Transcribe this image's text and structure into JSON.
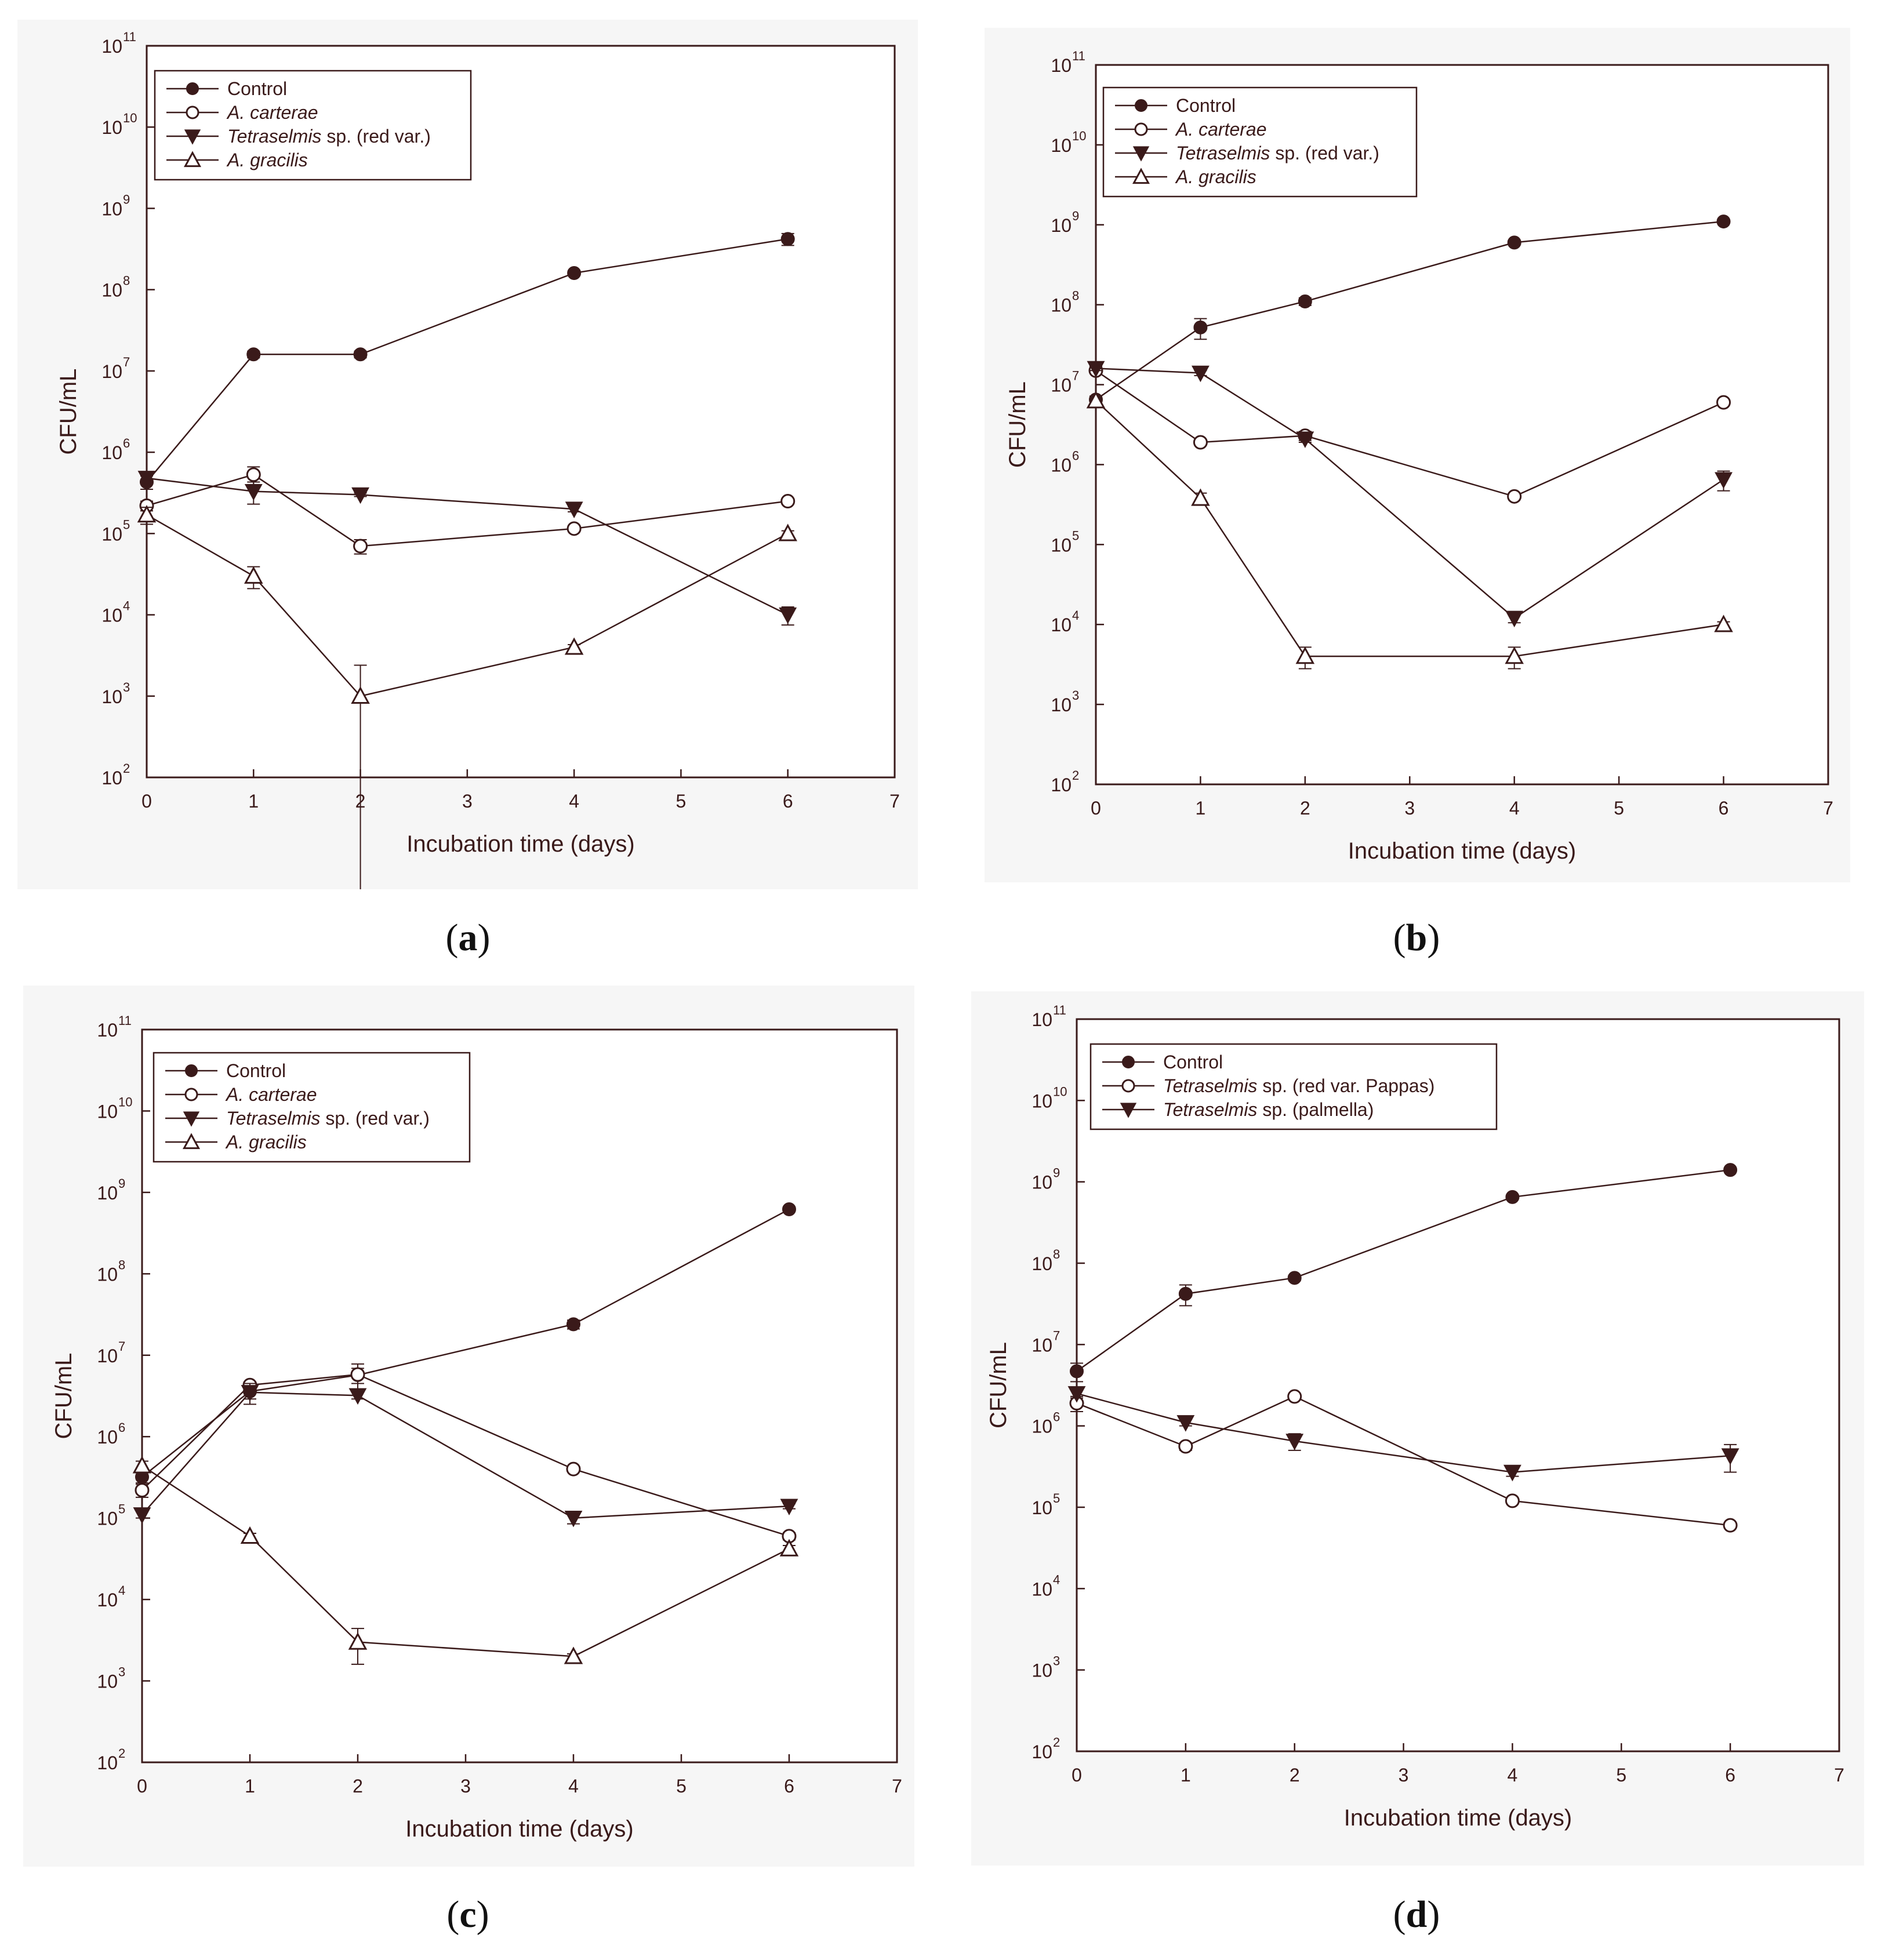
{
  "figure": {
    "captions": [
      {
        "open": "(",
        "letter": "a",
        "close": ")"
      },
      {
        "open": "(",
        "letter": "b",
        "close": ")"
      },
      {
        "open": "(",
        "letter": "c",
        "close": ")"
      },
      {
        "open": "(",
        "letter": "d",
        "close": ")"
      }
    ]
  },
  "colors": {
    "ink": "#3a1a1a",
    "panel_bg": "#f6f6f6",
    "plot_bg": "#ffffff"
  },
  "chart_data": [
    {
      "type": "line",
      "panel": "a",
      "xlabel": "Incubation time (days)",
      "ylabel": "CFU/mL",
      "yscale": "log",
      "xlim": [
        0,
        7
      ],
      "ylim": [
        100,
        100000000000
      ],
      "xticks": [
        "0",
        "1",
        "2",
        "3",
        "4",
        "5",
        "6",
        "7"
      ],
      "yticks": [
        "2",
        "3",
        "4",
        "5",
        "6",
        "7",
        "8",
        "9",
        "10",
        "11"
      ],
      "legend_position": "top-left",
      "series": [
        {
          "name": "Control",
          "italic": "",
          "suffix": "",
          "marker": "filled-circle",
          "x": [
            0,
            1,
            2,
            4,
            6
          ],
          "y": [
            430000,
            16000000,
            16000000,
            160000000,
            420000000
          ],
          "err": [
            80000,
            1500000,
            1500000,
            8000000,
            70000000
          ]
        },
        {
          "name": "A. carterae",
          "italic": "A. carterae",
          "suffix": "",
          "marker": "open-circle",
          "x": [
            0,
            1,
            2,
            4,
            6
          ],
          "y": [
            220000,
            530000,
            70000,
            115000,
            250000
          ],
          "err": [
            30000,
            130000,
            14000,
            8000,
            15000
          ]
        },
        {
          "name": "Tetraselmis sp. (red var.)",
          "italic": "Tetraselmis",
          "suffix": " sp. (red var.)",
          "marker": "filled-triangle-down",
          "x": [
            0,
            1,
            2,
            4,
            6
          ],
          "y": [
            480000,
            330000,
            300000,
            200000,
            10000
          ],
          "err": [
            40000,
            100000,
            15000,
            15000,
            2500
          ]
        },
        {
          "name": "A. gracilis",
          "italic": "A. gracilis",
          "suffix": "",
          "marker": "open-triangle-up",
          "x": [
            0,
            1,
            2,
            4,
            6
          ],
          "y": [
            170000,
            30000,
            1000,
            4000,
            100000
          ],
          "err": [
            40000,
            9000,
            1400,
            300,
            8000
          ]
        }
      ]
    },
    {
      "type": "line",
      "panel": "b",
      "xlabel": "Incubation time (days)",
      "ylabel": "CFU/mL",
      "yscale": "log",
      "xlim": [
        0,
        7
      ],
      "ylim": [
        100,
        100000000000
      ],
      "xticks": [
        "0",
        "1",
        "2",
        "3",
        "4",
        "5",
        "6",
        "7"
      ],
      "yticks": [
        "2",
        "3",
        "4",
        "5",
        "6",
        "7",
        "8",
        "9",
        "10",
        "11"
      ],
      "legend_position": "top-left",
      "series": [
        {
          "name": "Control",
          "italic": "",
          "suffix": "",
          "marker": "filled-circle",
          "x": [
            0,
            1,
            2,
            4,
            6
          ],
          "y": [
            6500000,
            52000000,
            110000000,
            600000000,
            1100000000
          ],
          "err": [
            700000,
            15000000,
            12000000,
            30000000,
            60000000
          ]
        },
        {
          "name": "A. carterae",
          "italic": "A. carterae",
          "suffix": "",
          "marker": "open-circle",
          "x": [
            0,
            1,
            2,
            4,
            6
          ],
          "y": [
            15000000,
            1900000,
            2300000,
            400000,
            6000000
          ],
          "err": [
            1000000,
            150000,
            300000,
            30000,
            400000
          ]
        },
        {
          "name": "Tetraselmis sp. (red var.)",
          "italic": "Tetraselmis",
          "suffix": " sp. (red var.)",
          "marker": "filled-triangle-down",
          "x": [
            0,
            1,
            2,
            4,
            6
          ],
          "y": [
            16000000,
            14000000,
            2100000,
            12000,
            650000
          ],
          "err": [
            1000000,
            1000000,
            200000,
            1500,
            180000
          ]
        },
        {
          "name": "A. gracilis",
          "italic": "A. gracilis",
          "suffix": "",
          "marker": "open-triangle-up",
          "x": [
            0,
            1,
            2,
            4,
            6
          ],
          "y": [
            6300000,
            380000,
            4000,
            4000,
            10000
          ],
          "err": [
            600000,
            60000,
            1200,
            1200,
            800
          ]
        }
      ]
    },
    {
      "type": "line",
      "panel": "c",
      "xlabel": "Incubation time (days)",
      "ylabel": "CFU/mL",
      "yscale": "log",
      "xlim": [
        0,
        7
      ],
      "ylim": [
        100,
        100000000000
      ],
      "xticks": [
        "0",
        "1",
        "2",
        "3",
        "4",
        "5",
        "6",
        "7"
      ],
      "yticks": [
        "2",
        "3",
        "4",
        "5",
        "6",
        "7",
        "8",
        "9",
        "10",
        "11"
      ],
      "legend_position": "top-left",
      "series": [
        {
          "name": "Control",
          "italic": "",
          "suffix": "",
          "marker": "filled-circle",
          "x": [
            0,
            1,
            2,
            4,
            6
          ],
          "y": [
            320000,
            3600000,
            5700000,
            24000000,
            620000000
          ],
          "err": [
            50000,
            700000,
            1200000,
            3000000,
            40000000
          ]
        },
        {
          "name": "A. carterae",
          "italic": "A. carterae",
          "suffix": "",
          "marker": "open-circle",
          "x": [
            0,
            1,
            2,
            4,
            6
          ],
          "y": [
            220000,
            4300000,
            5800000,
            400000,
            60000
          ],
          "err": [
            40000,
            400000,
            2000000,
            25000,
            6000
          ]
        },
        {
          "name": "Tetraselmis sp. (red var.)",
          "italic": "Tetraselmis",
          "suffix": " sp. (red var.)",
          "marker": "filled-triangle-down",
          "x": [
            0,
            1,
            2,
            4,
            6
          ],
          "y": [
            110000,
            3500000,
            3200000,
            100000,
            140000
          ],
          "err": [
            10000,
            1000000,
            300000,
            15000,
            10000
          ]
        },
        {
          "name": "A. gracilis",
          "italic": "A. gracilis",
          "suffix": "",
          "marker": "open-triangle-up",
          "x": [
            0,
            1,
            2,
            4,
            6
          ],
          "y": [
            440000,
            60000,
            3000,
            2000,
            42000
          ],
          "err": [
            60000,
            5000,
            1400,
            150,
            4000
          ]
        }
      ]
    },
    {
      "type": "line",
      "panel": "d",
      "xlabel": "Incubation time (days)",
      "ylabel": "CFU/mL",
      "yscale": "log",
      "xlim": [
        0,
        7
      ],
      "ylim": [
        100,
        100000000000
      ],
      "xticks": [
        "0",
        "1",
        "2",
        "3",
        "4",
        "5",
        "6",
        "7"
      ],
      "yticks": [
        "2",
        "3",
        "4",
        "5",
        "6",
        "7",
        "8",
        "9",
        "10",
        "11"
      ],
      "legend_position": "top-left",
      "series": [
        {
          "name": "Control",
          "italic": "",
          "suffix": "",
          "marker": "filled-circle",
          "x": [
            0,
            1,
            2,
            4,
            6
          ],
          "y": [
            4700000,
            42000000,
            66000000,
            650000000,
            1400000000
          ],
          "err": [
            1200000,
            12000000,
            5000000,
            30000000,
            80000000
          ]
        },
        {
          "name": "Tetraselmis sp. (red var. Pappas)",
          "italic": "Tetraselmis",
          "suffix": " sp. (red var. Pappas)",
          "marker": "open-circle",
          "x": [
            0,
            1,
            2,
            4,
            6
          ],
          "y": [
            1900000,
            560000,
            2300000,
            120000,
            60000
          ],
          "err": [
            400000,
            60000,
            150000,
            10000,
            4000
          ]
        },
        {
          "name": "Tetraselmis sp. (palmella)",
          "italic": "Tetraselmis",
          "suffix": " sp. (palmella)",
          "marker": "filled-triangle-down",
          "x": [
            0,
            1,
            2,
            4,
            6
          ],
          "y": [
            2500000,
            1100000,
            650000,
            270000,
            430000
          ],
          "err": [
            300000,
            100000,
            150000,
            30000,
            160000
          ]
        }
      ]
    }
  ]
}
